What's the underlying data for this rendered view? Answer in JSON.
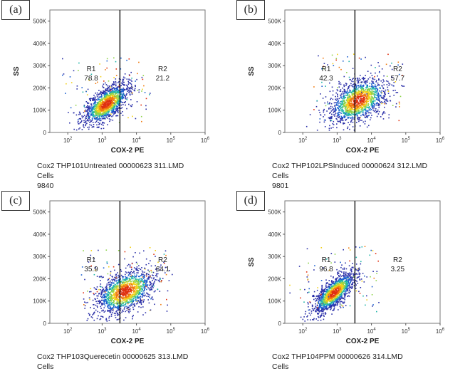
{
  "chart_data": [
    {
      "type": "scatter",
      "panel_label": "(a)",
      "xlabel": "COX-2 PE",
      "ylabel": "SS",
      "x_scale": "log",
      "xlim": [
        30,
        1000000
      ],
      "ylim": [
        0,
        550000
      ],
      "x_ticks": [
        "10^2",
        "10^3",
        "10^4",
        "10^5",
        "10^6"
      ],
      "y_ticks": [
        "0",
        "100K",
        "200K",
        "300K",
        "400K",
        "500K"
      ],
      "gate_x": 3300,
      "regions": [
        {
          "name": "R1",
          "value": "78.8"
        },
        {
          "name": "R2",
          "value": "21.2"
        }
      ],
      "caption": [
        "Cox2 THP101Untreated 00000623 311.LMD",
        "Cells",
        "9840"
      ],
      "cloud": {
        "center_x": 1300,
        "center_y": 130000,
        "spread_log_x": 0.33,
        "spread_y": 45000,
        "tilt": 0.65
      }
    },
    {
      "type": "scatter",
      "panel_label": "(b)",
      "xlabel": "COX-2 PE",
      "ylabel": "SS",
      "x_scale": "log",
      "xlim": [
        30,
        1000000
      ],
      "ylim": [
        0,
        550000
      ],
      "x_ticks": [
        "10^2",
        "10^3",
        "10^4",
        "10^5",
        "10^6"
      ],
      "y_ticks": [
        "0",
        "100K",
        "200K",
        "300K",
        "400K",
        "500K"
      ],
      "gate_x": 3300,
      "regions": [
        {
          "name": "R1",
          "value": "42.3"
        },
        {
          "name": "R2",
          "value": "57.7"
        }
      ],
      "caption": [
        "Cox2 THP102LPSInduced 00000624 312.LMD",
        "Cells",
        "9801"
      ],
      "cloud": {
        "center_x": 4000,
        "center_y": 145000,
        "spread_log_x": 0.42,
        "spread_y": 50000,
        "tilt": 0.45
      }
    },
    {
      "type": "scatter",
      "panel_label": "(c)",
      "xlabel": "COX-2 PE",
      "ylabel": "",
      "x_scale": "log",
      "xlim": [
        30,
        1000000
      ],
      "ylim": [
        0,
        550000
      ],
      "x_ticks": [
        "10^2",
        "10^3",
        "10^4",
        "10^5",
        "10^6"
      ],
      "y_ticks": [
        "0",
        "100K",
        "200K",
        "300K",
        "400K",
        "500K"
      ],
      "gate_x": 3300,
      "regions": [
        {
          "name": "R1",
          "value": "35.9"
        },
        {
          "name": "R2",
          "value": "64.1"
        }
      ],
      "caption": [
        "Cox2 THP103Querecetin 00000625 313.LMD",
        "Cells"
      ],
      "cloud": {
        "center_x": 4500,
        "center_y": 145000,
        "spread_log_x": 0.42,
        "spread_y": 50000,
        "tilt": 0.45
      }
    },
    {
      "type": "scatter",
      "panel_label": "(d)",
      "xlabel": "COX-2 PE",
      "ylabel": "SS",
      "x_scale": "log",
      "xlim": [
        30,
        1000000
      ],
      "ylim": [
        0,
        550000
      ],
      "x_ticks": [
        "10^2",
        "10^3",
        "10^4",
        "10^5",
        "10^6"
      ],
      "y_ticks": [
        "0",
        "100K",
        "200K",
        "300K",
        "400K",
        "500K"
      ],
      "gate_x": 3300,
      "regions": [
        {
          "name": "R1",
          "value": "96.8"
        },
        {
          "name": "R2",
          "value": "3.25"
        }
      ],
      "caption": [
        "Cox2 THP104PPM 00000626 314.LMD",
        "Cells"
      ],
      "cloud": {
        "center_x": 800,
        "center_y": 140000,
        "spread_log_x": 0.3,
        "spread_y": 45000,
        "tilt": 0.75
      }
    }
  ]
}
